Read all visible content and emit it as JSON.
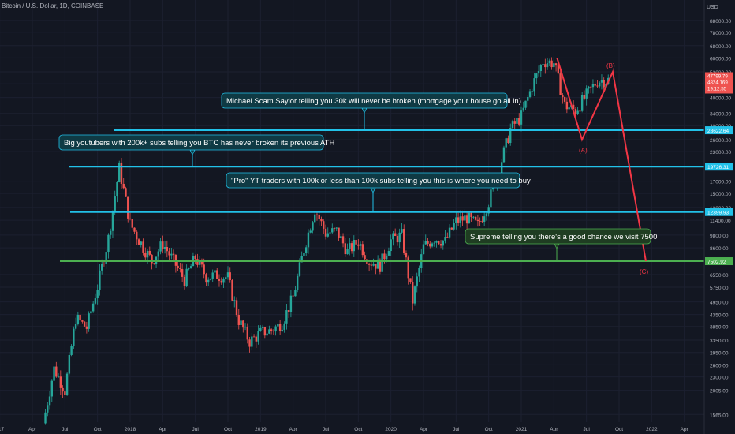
{
  "header": {
    "title": "Bitcoin / U.S. Dollar, 1D, COINBASE",
    "currency": "USD"
  },
  "colors": {
    "background": "#131722",
    "up": "#26a69a",
    "down": "#ef5350",
    "level_blue": "#22c1e8",
    "level_green": "#4caf50",
    "projection": "#f23645",
    "callout_blue": "#0f3a44",
    "callout_green": "#1f3d22"
  },
  "chart_data": {
    "type": "candlestick",
    "x_axis_ticks": [
      "017",
      "Apr",
      "Jul",
      "Oct",
      "2018",
      "Apr",
      "Jul",
      "Oct",
      "2019",
      "Apr",
      "Jul",
      "Oct",
      "2020",
      "Apr",
      "Jul",
      "Oct",
      "2021",
      "Apr",
      "Jul",
      "Oct",
      "2022",
      "Apr"
    ],
    "y_axis_scale": "log",
    "y_axis_ticks": [
      "88000.00",
      "78000.00",
      "68000.00",
      "60000.00",
      "52000.00",
      "46000.00",
      "40000.00",
      "34000.00",
      "30000.00",
      "26000.00",
      "23000.00",
      "17000.00",
      "15000.00",
      "13000.00",
      "11400.00",
      "9800.00",
      "8600.00",
      "6550.00",
      "5750.00",
      "4950.00",
      "4350.00",
      "3850.00",
      "3350.00",
      "2950.00",
      "2600.00",
      "2300.00",
      "2005.00",
      "1565.00"
    ],
    "horizontal_levels": [
      {
        "label": "28622.64",
        "value": 28622.64,
        "color": "blue"
      },
      {
        "label": "19726.31",
        "value": 19726.31,
        "color": "blue"
      },
      {
        "label": "12399.93",
        "value": 12399.93,
        "color": "blue"
      },
      {
        "label": "7502.92",
        "value": 7502.92,
        "color": "green"
      }
    ],
    "current_price": {
      "price": "47799.79",
      "change": "4824.169",
      "countdown": "19:12:55"
    },
    "annotations": [
      "Michael Scam Saylor telling you 30k will never be broken (mortgage your house go all in)",
      "Big youtubers with 200k+ subs telling you BTC has never broken its previous ATH",
      "\"Pro\" YT traders with 100k or less than 100k subs telling you this is where you need to buy",
      "Supreme telling you there's a good chance we visit 7500"
    ],
    "wave_labels": [
      "(A)",
      "(B)",
      "(C)"
    ],
    "price_path": [
      [
        "2017-05",
        1430
      ],
      [
        "2017-06",
        2500
      ],
      [
        "2017-07",
        2000
      ],
      [
        "2017-08",
        4200
      ],
      [
        "2017-09",
        3800
      ],
      [
        "2017-10",
        5800
      ],
      [
        "2017-11",
        9500
      ],
      [
        "2017-12",
        19500
      ],
      [
        "2018-01",
        11000
      ],
      [
        "2018-02",
        9000
      ],
      [
        "2018-03",
        7500
      ],
      [
        "2018-04",
        9000
      ],
      [
        "2018-05",
        7500
      ],
      [
        "2018-06",
        6200
      ],
      [
        "2018-07",
        7800
      ],
      [
        "2018-08",
        6400
      ],
      [
        "2018-09",
        6500
      ],
      [
        "2018-10",
        6350
      ],
      [
        "2018-11",
        4100
      ],
      [
        "2018-12",
        3300
      ],
      [
        "2019-01",
        3600
      ],
      [
        "2019-02",
        3700
      ],
      [
        "2019-03",
        4000
      ],
      [
        "2019-04",
        5200
      ],
      [
        "2019-05",
        8500
      ],
      [
        "2019-06",
        12800
      ],
      [
        "2019-07",
        10000
      ],
      [
        "2019-08",
        10200
      ],
      [
        "2019-09",
        8300
      ],
      [
        "2019-10",
        9200
      ],
      [
        "2019-11",
        7500
      ],
      [
        "2019-12",
        7200
      ],
      [
        "2020-01",
        9300
      ],
      [
        "2020-02",
        9800
      ],
      [
        "2020-03",
        5000
      ],
      [
        "2020-04",
        8700
      ],
      [
        "2020-05",
        9500
      ],
      [
        "2020-06",
        9200
      ],
      [
        "2020-07",
        11300
      ],
      [
        "2020-08",
        11700
      ],
      [
        "2020-09",
        10800
      ],
      [
        "2020-10",
        13800
      ],
      [
        "2020-11",
        19500
      ],
      [
        "2020-12",
        29000
      ],
      [
        "2021-01",
        33000
      ],
      [
        "2021-02",
        45000
      ],
      [
        "2021-03",
        58000
      ],
      [
        "2021-04",
        57000
      ],
      [
        "2021-05",
        37000
      ],
      [
        "2021-06",
        35000
      ],
      [
        "2021-07",
        41000
      ],
      [
        "2021-08",
        47500
      ],
      [
        "2021-09",
        47800
      ]
    ]
  }
}
